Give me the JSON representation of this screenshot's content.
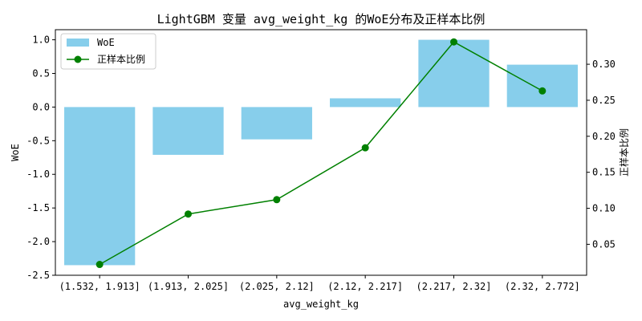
{
  "chart_data": {
    "type": "bar",
    "title": "LightGBM 变量 avg_weight_kg 的WoE分布及正样本比例",
    "xlabel": "avg_weight_kg",
    "ylabel": "WoE",
    "ylabel_right": "正样本比例",
    "categories": [
      "(1.532, 1.913]",
      "(1.913, 2.025]",
      "(2.025, 2.12]",
      "(2.12, 2.217]",
      "(2.217, 2.32]",
      "(2.32, 2.772]"
    ],
    "series": [
      {
        "name": "WoE",
        "kind": "bar",
        "axis": "left",
        "color": "#87ceeb",
        "values": [
          -2.35,
          -0.71,
          -0.48,
          0.13,
          1.0,
          0.63
        ]
      },
      {
        "name": "正样本比例",
        "kind": "line",
        "axis": "right",
        "color": "#008000",
        "values": [
          0.022,
          0.092,
          0.112,
          0.184,
          0.331,
          0.263
        ]
      }
    ],
    "ylim": [
      -2.5,
      1.15
    ],
    "ylim_right": [
      0.007,
      0.348
    ],
    "yticks": [
      "-2.5",
      "-2.0",
      "-1.5",
      "-1.0",
      "-0.5",
      "0.0",
      "0.5",
      "1.0"
    ],
    "yticks_right": [
      "0.05",
      "0.10",
      "0.15",
      "0.20",
      "0.25",
      "0.30"
    ],
    "legend": "top-left",
    "grid": false
  }
}
